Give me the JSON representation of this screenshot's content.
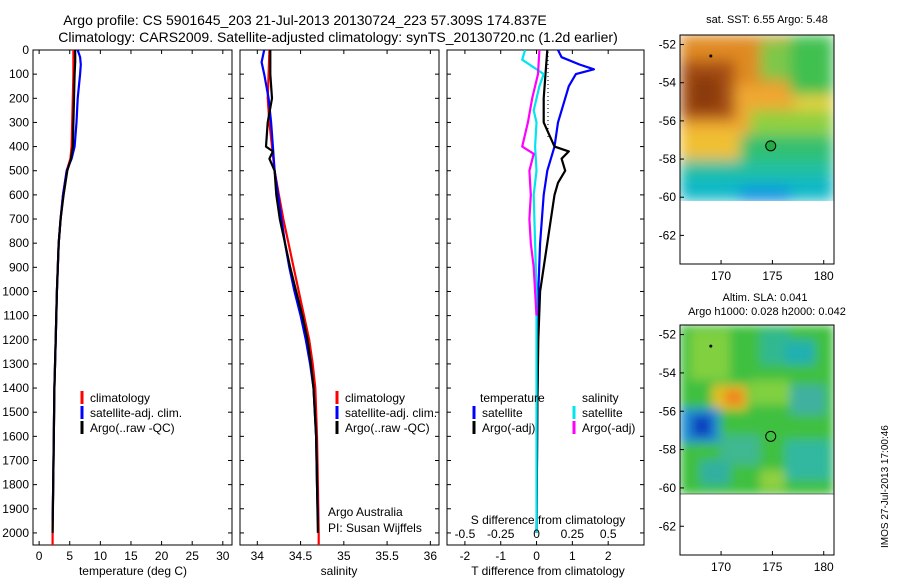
{
  "header": {
    "title_line1": "Argo profile: CS 5901645_203 21-Jul-2013 20130724_223 57.309S 174.837E",
    "title_line2": "Climatology: CARS2009. Satellite-adjusted climatology: synTS_20130720.nc (1.2d earlier)"
  },
  "footer_stamp": "IMOS 27-Jul-2013 17:00:46",
  "colors": {
    "climatology": "#ff0000",
    "satellite": "#0000ff",
    "argo": "#000000",
    "sal_satellite": "#00e5ee",
    "sal_argo": "#ff00ff"
  },
  "chart_data": [
    {
      "type": "line",
      "panel": "temperature",
      "xlabel": "temperature (deg C)",
      "ylabel": "",
      "xlim": [
        -1,
        31.5
      ],
      "ylim": [
        2050,
        0
      ],
      "y_inverted": true,
      "xticks": [
        0,
        5,
        10,
        15,
        20,
        25,
        30
      ],
      "yticks": [
        0,
        100,
        200,
        300,
        400,
        500,
        600,
        700,
        800,
        900,
        1000,
        1100,
        1200,
        1300,
        1400,
        1500,
        1600,
        1700,
        1800,
        1900,
        2000
      ],
      "legend": {
        "position": "lower-middle",
        "entries": [
          "climatology",
          "satellite-adj. clim.",
          "Argo(..raw -QC)"
        ]
      },
      "series": [
        {
          "name": "climatology",
          "color_key": "climatology",
          "points": [
            [
              5.6,
              0
            ],
            [
              5.6,
              50
            ],
            [
              5.6,
              100
            ],
            [
              5.5,
              200
            ],
            [
              5.4,
              300
            ],
            [
              5.3,
              400
            ],
            [
              5.1,
              450
            ],
            [
              4.5,
              500
            ],
            [
              3.9,
              600
            ],
            [
              3.5,
              700
            ],
            [
              3.2,
              800
            ],
            [
              2.9,
              1000
            ],
            [
              2.7,
              1200
            ],
            [
              2.5,
              1400
            ],
            [
              2.4,
              1600
            ],
            [
              2.3,
              1800
            ],
            [
              2.2,
              2000
            ],
            [
              2.2,
              2050
            ]
          ]
        },
        {
          "name": "satellite-adj. clim.",
          "color_key": "satellite",
          "points": [
            [
              6.3,
              0
            ],
            [
              6.7,
              30
            ],
            [
              6.8,
              60
            ],
            [
              6.7,
              100
            ],
            [
              6.5,
              150
            ],
            [
              6.3,
              200
            ],
            [
              6.1,
              300
            ],
            [
              5.8,
              400
            ],
            [
              5.3,
              450
            ],
            [
              4.5,
              500
            ],
            [
              3.9,
              600
            ],
            [
              3.5,
              700
            ],
            [
              3.2,
              800
            ],
            [
              2.9,
              1000
            ],
            [
              2.7,
              1200
            ],
            [
              2.5,
              1400
            ],
            [
              2.4,
              1600
            ],
            [
              2.3,
              1800
            ],
            [
              2.2,
              1950
            ]
          ]
        },
        {
          "name": "Argo(..raw -QC)",
          "color_key": "argo",
          "points": [
            [
              5.9,
              0
            ],
            [
              5.9,
              50
            ],
            [
              5.8,
              100
            ],
            [
              5.7,
              200
            ],
            [
              5.6,
              300
            ],
            [
              5.5,
              400
            ],
            [
              5.2,
              450
            ],
            [
              4.6,
              500
            ],
            [
              4.0,
              600
            ],
            [
              3.5,
              700
            ],
            [
              3.2,
              800
            ],
            [
              2.9,
              1000
            ],
            [
              2.7,
              1200
            ],
            [
              2.5,
              1400
            ],
            [
              2.4,
              1600
            ],
            [
              2.3,
              1800
            ],
            [
              2.2,
              2000
            ]
          ]
        }
      ]
    },
    {
      "type": "line",
      "panel": "salinity",
      "xlabel": "salinity",
      "ylabel": "",
      "xlim": [
        33.8,
        36.1
      ],
      "ylim": [
        2050,
        0
      ],
      "y_inverted": true,
      "xticks": [
        34,
        34.5,
        35,
        35.5,
        36
      ],
      "xticklabels": [
        "34",
        "34.5",
        "35",
        "35.5",
        "36"
      ],
      "legend": {
        "position": "lower-middle",
        "entries": [
          "climatology",
          "satellite-adj. clim.",
          "Argo(..raw -QC)"
        ]
      },
      "annotation": [
        "Argo Australia",
        "PI: Susan Wijffels"
      ],
      "series": [
        {
          "name": "climatology",
          "color_key": "climatology",
          "points": [
            [
              34.14,
              0
            ],
            [
              34.13,
              100
            ],
            [
              34.12,
              200
            ],
            [
              34.14,
              300
            ],
            [
              34.17,
              400
            ],
            [
              34.2,
              500
            ],
            [
              34.25,
              600
            ],
            [
              34.3,
              700
            ],
            [
              34.36,
              800
            ],
            [
              34.42,
              900
            ],
            [
              34.48,
              1000
            ],
            [
              34.54,
              1100
            ],
            [
              34.6,
              1200
            ],
            [
              34.64,
              1300
            ],
            [
              34.67,
              1400
            ],
            [
              34.69,
              1600
            ],
            [
              34.7,
              1800
            ],
            [
              34.71,
              2000
            ],
            [
              34.71,
              2050
            ]
          ]
        },
        {
          "name": "satellite-adj. clim.",
          "color_key": "satellite",
          "points": [
            [
              34.08,
              0
            ],
            [
              34.05,
              50
            ],
            [
              34.08,
              100
            ],
            [
              34.13,
              200
            ],
            [
              34.16,
              300
            ],
            [
              34.18,
              400
            ],
            [
              34.2,
              500
            ],
            [
              34.24,
              600
            ],
            [
              34.28,
              700
            ],
            [
              34.32,
              800
            ],
            [
              34.37,
              900
            ],
            [
              34.43,
              1000
            ],
            [
              34.5,
              1100
            ],
            [
              34.56,
              1200
            ],
            [
              34.61,
              1300
            ],
            [
              34.65,
              1400
            ],
            [
              34.68,
              1600
            ],
            [
              34.69,
              1800
            ],
            [
              34.7,
              1950
            ]
          ]
        },
        {
          "name": "Argo(..raw -QC)",
          "color_key": "argo",
          "points": [
            [
              34.15,
              0
            ],
            [
              34.15,
              100
            ],
            [
              34.17,
              200
            ],
            [
              34.12,
              300
            ],
            [
              34.1,
              400
            ],
            [
              34.18,
              420
            ],
            [
              34.14,
              450
            ],
            [
              34.2,
              500
            ],
            [
              34.22,
              600
            ],
            [
              34.26,
              700
            ],
            [
              34.32,
              800
            ],
            [
              34.38,
              900
            ],
            [
              34.45,
              1000
            ],
            [
              34.52,
              1100
            ],
            [
              34.58,
              1200
            ],
            [
              34.62,
              1300
            ],
            [
              34.65,
              1400
            ],
            [
              34.68,
              1600
            ],
            [
              34.69,
              1800
            ],
            [
              34.7,
              2000
            ]
          ]
        }
      ]
    },
    {
      "type": "line",
      "panel": "difference",
      "xlabel": "T difference from climatology",
      "xlabel_top": "S difference from climatology",
      "xlim": [
        -2.5,
        3.0
      ],
      "ylim": [
        2050,
        0
      ],
      "y_inverted": true,
      "xticks": [
        -2,
        -1,
        0,
        1,
        2
      ],
      "s_ticklabels": [
        "-0.5",
        "-0.25",
        "0",
        "0.25",
        "0.5"
      ],
      "legend": {
        "position": "lower",
        "groups": [
          {
            "heading": "temperature",
            "entries": [
              "satellite",
              "Argo(-adj)"
            ]
          },
          {
            "heading": "salinity",
            "entries": [
              "satellite",
              "Argo(-adj)"
            ]
          }
        ]
      },
      "series": [
        {
          "name": "satellite",
          "group": "temperature",
          "color_key": "satellite",
          "points": [
            [
              0.6,
              0
            ],
            [
              0.7,
              30
            ],
            [
              1.2,
              60
            ],
            [
              1.6,
              80
            ],
            [
              1.1,
              100
            ],
            [
              0.9,
              150
            ],
            [
              0.8,
              200
            ],
            [
              0.6,
              300
            ],
            [
              0.5,
              400
            ],
            [
              0.3,
              500
            ],
            [
              0.2,
              600
            ],
            [
              0.1,
              800
            ],
            [
              0.05,
              1000
            ],
            [
              0.02,
              1500
            ],
            [
              0.0,
              2000
            ]
          ]
        },
        {
          "name": "Argo(-adj)",
          "group": "temperature",
          "color_key": "argo",
          "points": [
            [
              0.3,
              0
            ],
            [
              0.25,
              100
            ],
            [
              0.2,
              200
            ],
            [
              0.2,
              300
            ],
            [
              0.5,
              400
            ],
            [
              0.9,
              420
            ],
            [
              0.7,
              450
            ],
            [
              0.8,
              500
            ],
            [
              0.6,
              550
            ],
            [
              0.5,
              600
            ],
            [
              0.4,
              700
            ],
            [
              0.3,
              800
            ],
            [
              0.2,
              900
            ],
            [
              0.1,
              1000
            ],
            [
              0.05,
              1200
            ],
            [
              0.02,
              1500
            ],
            [
              0.0,
              2000
            ]
          ]
        },
        {
          "name": "satellite",
          "group": "salinity",
          "color_key": "sal_satellite",
          "points": [
            [
              -0.08,
              0
            ],
            [
              -0.1,
              40
            ],
            [
              0.05,
              100
            ],
            [
              0.02,
              150
            ],
            [
              -0.02,
              250
            ],
            [
              0.0,
              300
            ],
            [
              -0.01,
              400
            ],
            [
              0.0,
              500
            ],
            [
              -0.02,
              600
            ],
            [
              -0.01,
              800
            ],
            [
              0.0,
              1000
            ],
            [
              0.0,
              1200
            ],
            [
              0.0,
              1500
            ],
            [
              0.0,
              2000
            ]
          ]
        },
        {
          "name": "Argo(-adj)",
          "group": "salinity",
          "color_key": "sal_argo",
          "points": [
            [
              0.02,
              0
            ],
            [
              0.01,
              100
            ],
            [
              -0.03,
              200
            ],
            [
              -0.06,
              300
            ],
            [
              -0.1,
              400
            ],
            [
              -0.02,
              430
            ],
            [
              -0.05,
              500
            ],
            [
              -0.04,
              600
            ],
            [
              -0.05,
              700
            ],
            [
              -0.04,
              800
            ],
            [
              -0.02,
              900
            ],
            [
              -0.01,
              1000
            ],
            [
              0.0,
              1100
            ]
          ]
        }
      ]
    },
    {
      "type": "heatmap",
      "panel": "sst_map",
      "title": "sat. SST: 6.55 Argo: 5.48",
      "xticks": [
        170,
        175,
        180
      ],
      "yticks": [
        -52,
        -54,
        -56,
        -58,
        -60,
        -62
      ],
      "xlim": [
        166,
        181
      ],
      "ylim": [
        -63.5,
        -51.5
      ],
      "argo_position": [
        174.837,
        -57.309
      ],
      "previous_position": [
        169,
        -52.6
      ]
    },
    {
      "type": "heatmap",
      "panel": "sla_map",
      "title_line1": "Altim. SLA: 0.041",
      "title_line2": "Argo h1000: 0.028 h2000: 0.042",
      "xticks": [
        170,
        175,
        180
      ],
      "yticks": [
        -52,
        -54,
        -56,
        -58,
        -60,
        -62
      ],
      "xlim": [
        166,
        181
      ],
      "ylim": [
        -63.5,
        -51.5
      ],
      "argo_position": [
        174.837,
        -57.309
      ],
      "previous_position": [
        169,
        -52.6
      ]
    }
  ]
}
